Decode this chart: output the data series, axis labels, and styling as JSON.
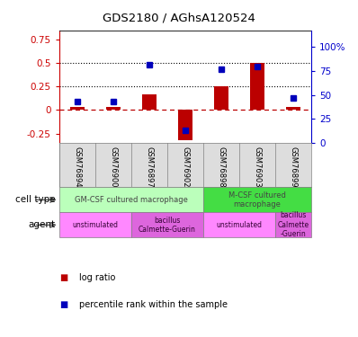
{
  "title": "GDS2180 / AGhsA120524",
  "samples": [
    "GSM76894",
    "GSM76900",
    "GSM76897",
    "GSM76902",
    "GSM76898",
    "GSM76903",
    "GSM76899"
  ],
  "log_ratio": [
    0.03,
    0.03,
    0.17,
    -0.32,
    0.25,
    0.5,
    0.03
  ],
  "percentile_rank": [
    0.43,
    0.43,
    0.82,
    0.13,
    0.77,
    0.8,
    0.47
  ],
  "ylim_left": [
    -0.35,
    0.85
  ],
  "ylim_right": [
    0.0,
    1.176
  ],
  "yticks_left": [
    -0.25,
    0.0,
    0.25,
    0.5,
    0.75
  ],
  "yticks_right_vals": [
    0.0,
    0.25,
    0.5,
    0.75,
    1.0
  ],
  "ytick_labels_left": [
    "-0.25",
    "0",
    "0.25",
    "0.5",
    "0.75"
  ],
  "ytick_labels_right": [
    "0",
    "25",
    "50",
    "75",
    "100%"
  ],
  "hlines_dotted": [
    0.25,
    0.5
  ],
  "hline_dashed_red": 0.0,
  "bar_color": "#bb0000",
  "dot_color": "#0000bb",
  "left_axis_color": "#cc0000",
  "right_axis_color": "#0000cc",
  "cell_type_groups": [
    {
      "label": "GM-CSF cultured macrophage",
      "start": 0,
      "end": 4,
      "color": "#bbffbb"
    },
    {
      "label": "M-CSF cultured\nmacrophage",
      "start": 4,
      "end": 7,
      "color": "#44dd44"
    }
  ],
  "agent_groups": [
    {
      "label": "unstimulated",
      "start": 0,
      "end": 2,
      "color": "#ff88ff"
    },
    {
      "label": "bacillus\nCalmette-Guerin",
      "start": 2,
      "end": 4,
      "color": "#dd66dd"
    },
    {
      "label": "unstimulated",
      "start": 4,
      "end": 6,
      "color": "#ff88ff"
    },
    {
      "label": "bacillus\nCalmette\n-Guerin",
      "start": 6,
      "end": 7,
      "color": "#dd66dd"
    }
  ],
  "legend_items": [
    {
      "label": "log ratio",
      "color": "#bb0000"
    },
    {
      "label": "percentile rank within the sample",
      "color": "#0000bb"
    }
  ]
}
